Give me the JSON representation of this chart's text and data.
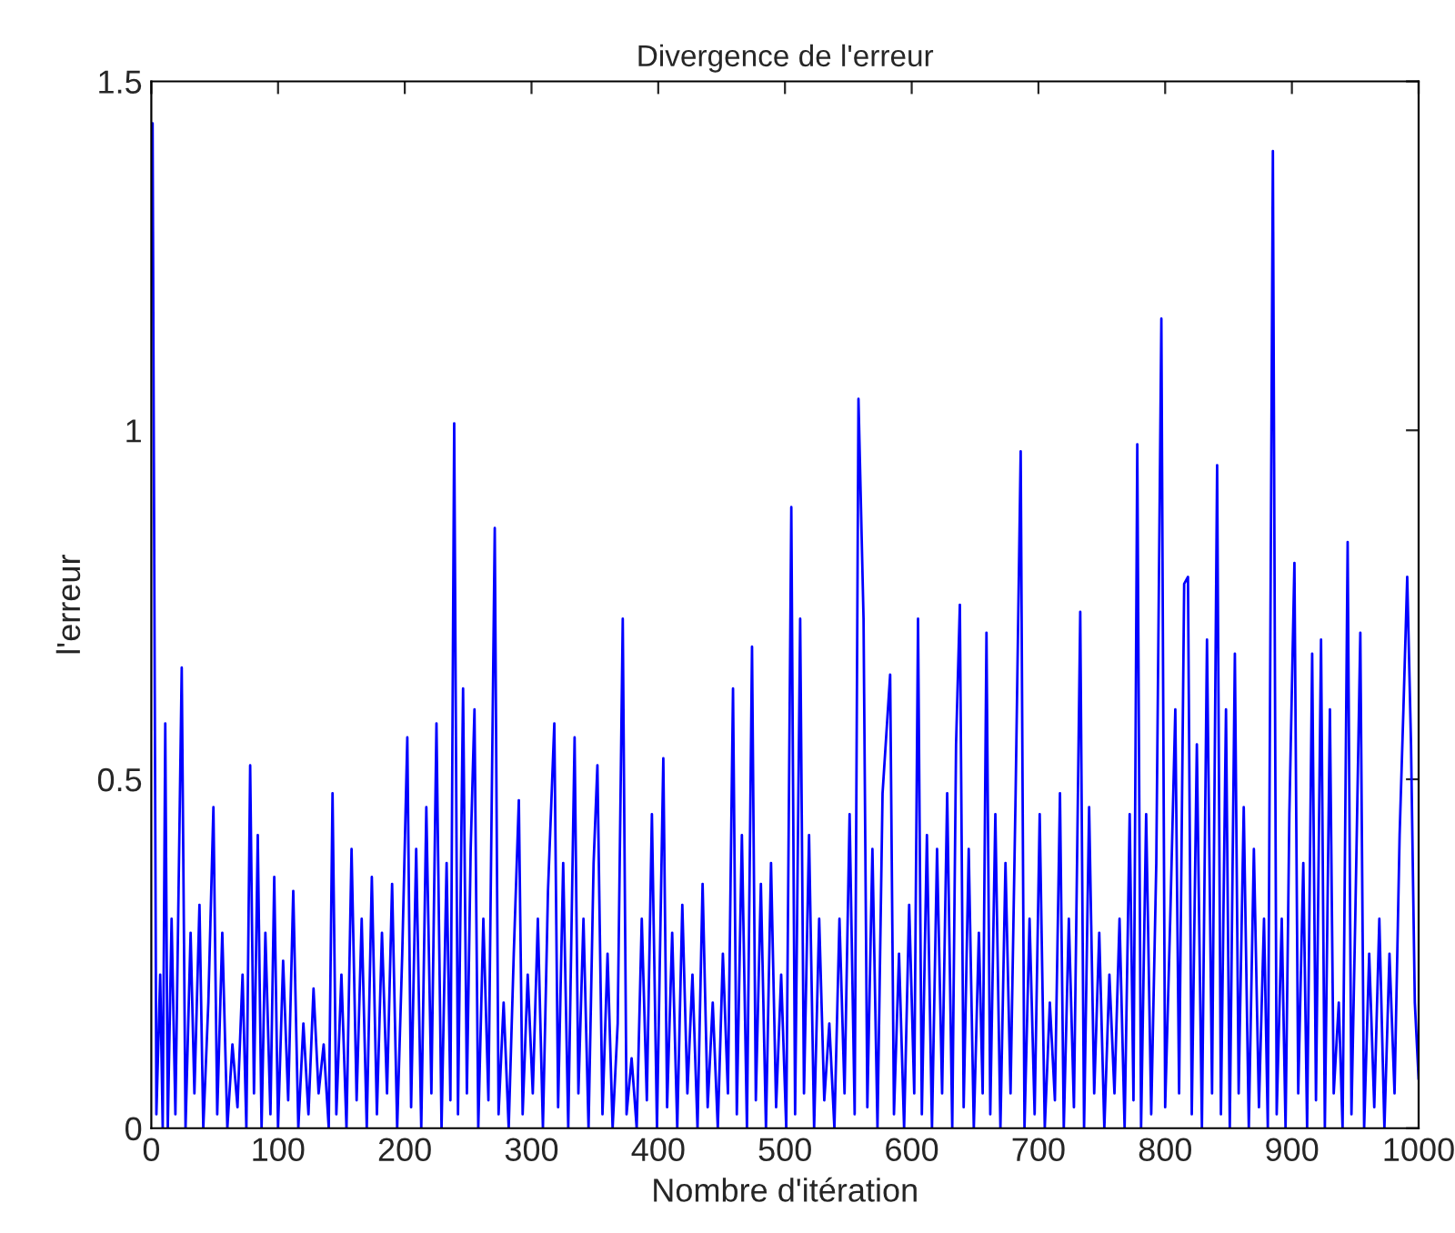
{
  "chart_data": {
    "type": "line",
    "title": "Divergence de l'erreur",
    "xlabel": "Nombre d'itération",
    "ylabel": "l'erreur",
    "xlim": [
      0,
      1000
    ],
    "xticks": [
      0,
      100,
      200,
      300,
      400,
      500,
      600,
      700,
      800,
      900,
      1000
    ],
    "ylim": [
      0,
      1.5
    ],
    "yticks": [
      0,
      0.5,
      1,
      1.5
    ],
    "grid": false,
    "legend": false,
    "series": [
      {
        "color": "#0000ff",
        "x": [
          1,
          4,
          7,
          9,
          11,
          13,
          16,
          19,
          24,
          27,
          31,
          34,
          38,
          41,
          45,
          49,
          52,
          56,
          60,
          64,
          68,
          72,
          75,
          78,
          81,
          84,
          87,
          90,
          94,
          97,
          100,
          104,
          108,
          112,
          116,
          120,
          124,
          128,
          132,
          136,
          140,
          143,
          146,
          150,
          154,
          158,
          162,
          166,
          170,
          174,
          178,
          182,
          186,
          190,
          194,
          198,
          202,
          205,
          209,
          213,
          217,
          221,
          225,
          229,
          233,
          236,
          239,
          242,
          246,
          249,
          252,
          255,
          258,
          262,
          266,
          271,
          274,
          278,
          282,
          286,
          290,
          293,
          297,
          301,
          305,
          309,
          313,
          318,
          321,
          325,
          329,
          334,
          337,
          341,
          345,
          349,
          352,
          356,
          360,
          364,
          368,
          372,
          375,
          379,
          383,
          387,
          391,
          395,
          399,
          404,
          407,
          411,
          415,
          419,
          423,
          427,
          431,
          435,
          439,
          443,
          447,
          451,
          455,
          459,
          462,
          466,
          470,
          474,
          477,
          481,
          485,
          489,
          493,
          497,
          501,
          505,
          508,
          512,
          515,
          519,
          523,
          527,
          531,
          535,
          539,
          543,
          547,
          551,
          555,
          558,
          562,
          565,
          569,
          573,
          577,
          583,
          586,
          590,
          594,
          598,
          602,
          605,
          608,
          612,
          616,
          620,
          624,
          628,
          632,
          635,
          638,
          641,
          645,
          649,
          653,
          656,
          659,
          662,
          666,
          670,
          674,
          678,
          682,
          686,
          689,
          693,
          697,
          701,
          705,
          709,
          713,
          717,
          720,
          724,
          728,
          733,
          736,
          740,
          744,
          748,
          752,
          756,
          760,
          764,
          768,
          772,
          775,
          778,
          781,
          785,
          789,
          793,
          797,
          800,
          804,
          808,
          811,
          815,
          818,
          821,
          825,
          829,
          833,
          837,
          841,
          844,
          848,
          851,
          855,
          858,
          862,
          866,
          870,
          874,
          878,
          881,
          885,
          888,
          892,
          895,
          898,
          902,
          905,
          909,
          912,
          916,
          919,
          923,
          926,
          930,
          933,
          937,
          940,
          944,
          947,
          950,
          954,
          957,
          961,
          965,
          969,
          973,
          977,
          981,
          985,
          988,
          991,
          994,
          997,
          1000
        ],
        "values": [
          1.44,
          0.02,
          0.22,
          0.0,
          0.58,
          0.0,
          0.3,
          0.02,
          0.66,
          0.0,
          0.28,
          0.05,
          0.32,
          0.0,
          0.18,
          0.46,
          0.02,
          0.28,
          0.0,
          0.12,
          0.03,
          0.22,
          0.0,
          0.52,
          0.05,
          0.42,
          0.0,
          0.28,
          0.02,
          0.36,
          0.0,
          0.24,
          0.04,
          0.34,
          0.0,
          0.15,
          0.02,
          0.2,
          0.05,
          0.12,
          0.0,
          0.48,
          0.02,
          0.22,
          0.0,
          0.4,
          0.04,
          0.3,
          0.0,
          0.36,
          0.02,
          0.28,
          0.05,
          0.35,
          0.0,
          0.25,
          0.56,
          0.03,
          0.4,
          0.0,
          0.46,
          0.05,
          0.58,
          0.0,
          0.38,
          0.04,
          1.01,
          0.02,
          0.63,
          0.05,
          0.4,
          0.6,
          0.0,
          0.3,
          0.04,
          0.86,
          0.02,
          0.18,
          0.0,
          0.25,
          0.47,
          0.02,
          0.22,
          0.05,
          0.3,
          0.0,
          0.34,
          0.58,
          0.03,
          0.38,
          0.0,
          0.56,
          0.05,
          0.3,
          0.0,
          0.38,
          0.52,
          0.02,
          0.25,
          0.0,
          0.15,
          0.73,
          0.02,
          0.1,
          0.0,
          0.3,
          0.04,
          0.45,
          0.0,
          0.53,
          0.03,
          0.28,
          0.0,
          0.32,
          0.05,
          0.22,
          0.0,
          0.35,
          0.03,
          0.18,
          0.0,
          0.25,
          0.05,
          0.63,
          0.02,
          0.42,
          0.0,
          0.69,
          0.04,
          0.35,
          0.0,
          0.38,
          0.03,
          0.22,
          0.0,
          0.89,
          0.02,
          0.73,
          0.05,
          0.42,
          0.0,
          0.3,
          0.04,
          0.15,
          0.0,
          0.3,
          0.05,
          0.45,
          0.02,
          1.045,
          0.73,
          0.03,
          0.4,
          0.0,
          0.48,
          0.65,
          0.02,
          0.25,
          0.0,
          0.32,
          0.05,
          0.73,
          0.02,
          0.42,
          0.0,
          0.4,
          0.05,
          0.48,
          0.0,
          0.55,
          0.75,
          0.03,
          0.4,
          0.0,
          0.28,
          0.05,
          0.71,
          0.02,
          0.45,
          0.0,
          0.38,
          0.05,
          0.48,
          0.97,
          0.0,
          0.3,
          0.02,
          0.45,
          0.0,
          0.18,
          0.04,
          0.48,
          0.0,
          0.3,
          0.03,
          0.74,
          0.0,
          0.46,
          0.05,
          0.28,
          0.0,
          0.22,
          0.05,
          0.3,
          0.0,
          0.45,
          0.04,
          0.98,
          0.0,
          0.45,
          0.02,
          0.38,
          1.16,
          0.03,
          0.3,
          0.6,
          0.05,
          0.78,
          0.79,
          0.02,
          0.55,
          0.0,
          0.7,
          0.05,
          0.95,
          0.02,
          0.6,
          0.0,
          0.68,
          0.05,
          0.46,
          0.0,
          0.4,
          0.03,
          0.3,
          0.0,
          1.4,
          0.02,
          0.3,
          0.0,
          0.45,
          0.81,
          0.05,
          0.38,
          0.0,
          0.68,
          0.04,
          0.7,
          0.0,
          0.6,
          0.05,
          0.18,
          0.0,
          0.84,
          0.02,
          0.3,
          0.71,
          0.0,
          0.25,
          0.03,
          0.3,
          0.0,
          0.25,
          0.05,
          0.42,
          0.6,
          0.79,
          0.55,
          0.18,
          0.07
        ]
      }
    ]
  }
}
